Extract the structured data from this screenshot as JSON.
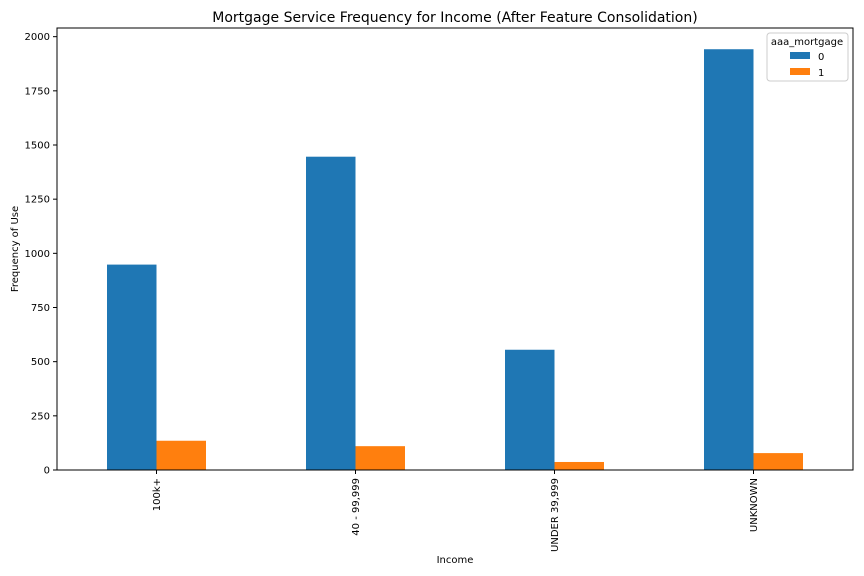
{
  "chart_data": {
    "type": "bar",
    "title": "Mortgage Service Frequency for Income (After Feature Consolidation)",
    "xlabel": "Income",
    "ylabel": "Frequency of Use",
    "categories": [
      "100k+",
      "40 - 99,999",
      "UNDER 39,999",
      "UNKNOWN"
    ],
    "series": [
      {
        "name": "0",
        "values": [
          948,
          1446,
          555,
          1942
        ],
        "color": "#1f77b4"
      },
      {
        "name": "1",
        "values": [
          135,
          110,
          37,
          78
        ],
        "color": "#ff7f0e"
      }
    ],
    "ylim": [
      0,
      2040
    ],
    "yticks": [
      0,
      250,
      500,
      750,
      1000,
      1250,
      1500,
      1750,
      2000
    ],
    "grid": false,
    "legend": {
      "title": "aaa_mortgage",
      "placement": "top-right"
    }
  }
}
